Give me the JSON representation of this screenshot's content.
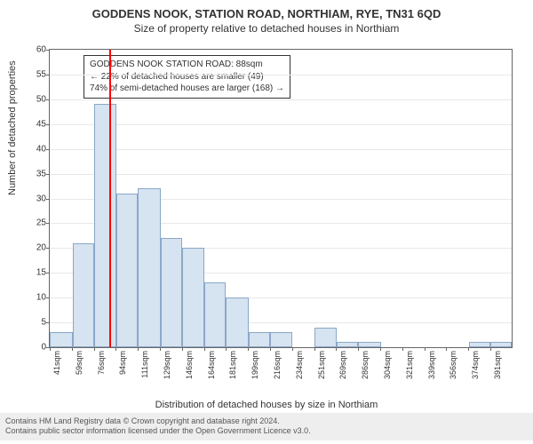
{
  "title": "GODDENS NOOK, STATION ROAD, NORTHIAM, RYE, TN31 6QD",
  "subtitle": "Size of property relative to detached houses in Northiam",
  "ylabel": "Number of detached properties",
  "xlabel": "Distribution of detached houses by size in Northiam",
  "footer_line1": "Contains HM Land Registry data © Crown copyright and database right 2024.",
  "footer_line2": "Contains public sector information licensed under the Open Government Licence v3.0.",
  "chart": {
    "type": "histogram",
    "background_color": "#ffffff",
    "bar_color": "#d6e3f0",
    "bar_border_color": "#8aa8c8",
    "grid_color": "#e8e8e8",
    "axis_color": "#666666",
    "marker_color": "#ff0000",
    "marker_x": 88,
    "x_min": 41,
    "x_max": 408,
    "x_tick_step": 17.5,
    "x_ticks": [
      "41sqm",
      "59sqm",
      "76sqm",
      "94sqm",
      "111sqm",
      "129sqm",
      "146sqm",
      "164sqm",
      "181sqm",
      "199sqm",
      "216sqm",
      "234sqm",
      "251sqm",
      "269sqm",
      "286sqm",
      "304sqm",
      "321sqm",
      "339sqm",
      "356sqm",
      "374sqm",
      "391sqm"
    ],
    "y_min": 0,
    "y_max": 60,
    "y_tick_step": 5,
    "bars": [
      {
        "x0": 41,
        "x1": 59,
        "value": 3
      },
      {
        "x0": 59,
        "x1": 76,
        "value": 21
      },
      {
        "x0": 76,
        "x1": 94,
        "value": 49
      },
      {
        "x0": 94,
        "x1": 111,
        "value": 31
      },
      {
        "x0": 111,
        "x1": 129,
        "value": 32
      },
      {
        "x0": 129,
        "x1": 146,
        "value": 22
      },
      {
        "x0": 146,
        "x1": 164,
        "value": 20
      },
      {
        "x0": 164,
        "x1": 181,
        "value": 13
      },
      {
        "x0": 181,
        "x1": 199,
        "value": 10
      },
      {
        "x0": 199,
        "x1": 216,
        "value": 3
      },
      {
        "x0": 216,
        "x1": 234,
        "value": 3
      },
      {
        "x0": 234,
        "x1": 251,
        "value": 0
      },
      {
        "x0": 251,
        "x1": 269,
        "value": 4
      },
      {
        "x0": 269,
        "x1": 286,
        "value": 1
      },
      {
        "x0": 286,
        "x1": 304,
        "value": 1
      },
      {
        "x0": 304,
        "x1": 321,
        "value": 0
      },
      {
        "x0": 321,
        "x1": 339,
        "value": 0
      },
      {
        "x0": 339,
        "x1": 356,
        "value": 0
      },
      {
        "x0": 356,
        "x1": 374,
        "value": 0
      },
      {
        "x0": 374,
        "x1": 391,
        "value": 1
      },
      {
        "x0": 391,
        "x1": 408,
        "value": 1
      }
    ],
    "title_fontsize": 13,
    "subtitle_fontsize": 12,
    "label_fontsize": 11,
    "tick_fontsize": 10
  },
  "info_box": {
    "line1": "GODDENS NOOK STATION ROAD: 88sqm",
    "line2": "← 22% of detached houses are smaller (49)",
    "line3": "74% of semi-detached houses are larger (168) →"
  }
}
